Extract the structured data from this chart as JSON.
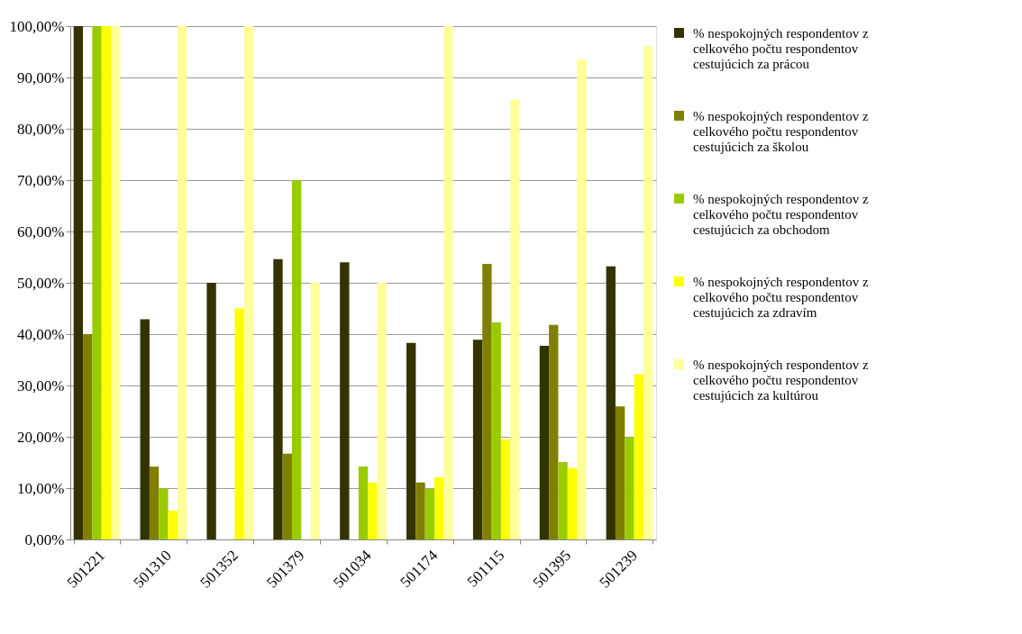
{
  "chart_data": {
    "type": "bar",
    "categories": [
      "501221",
      "501310",
      "501352",
      "501379",
      "501034",
      "501174",
      "501115",
      "501395",
      "501239"
    ],
    "series": [
      {
        "name": "% nespokojných respondentov z celkového počtu respondentov cestujúcich za prácou",
        "color": "#333300",
        "values": [
          100,
          42.9,
          50,
          54.6,
          54.0,
          38.3,
          38.9,
          37.7,
          53.2
        ]
      },
      {
        "name": "% nespokojných respondentov z celkového počtu respondentov cestujúcich za školou",
        "color": "#808000",
        "values": [
          40,
          14.2,
          0,
          16.7,
          0,
          11.1,
          53.7,
          41.8,
          25.9
        ]
      },
      {
        "name": "% nespokojných respondentov z celkového počtu respondentov cestujúcich za obchodom",
        "color": "#99cc00",
        "values": [
          100,
          9.9,
          0,
          70,
          14.2,
          9.9,
          42.3,
          15.1,
          19.9
        ]
      },
      {
        "name": "% nespokojných respondentov z celkového počtu respondentov cestujúcich za zdravím",
        "color": "#ffff00",
        "values": [
          100,
          5.6,
          45.0,
          0,
          11.1,
          12.1,
          19.5,
          13.9,
          32.2
        ]
      },
      {
        "name": "% nespokojných respondentov z celkového počtu respondentov cestujúcich za kultúrou",
        "color": "#ffff99",
        "values": [
          100,
          100,
          100,
          50,
          50,
          100,
          85.7,
          93.5,
          96.0
        ]
      }
    ],
    "ylim": [
      0,
      100
    ],
    "yticks": [
      {
        "value": 0,
        "label": "0,00%"
      },
      {
        "value": 10,
        "label": "10,00%"
      },
      {
        "value": 20,
        "label": "20,00%"
      },
      {
        "value": 30,
        "label": "30,00%"
      },
      {
        "value": 40,
        "label": "40,00%"
      },
      {
        "value": 50,
        "label": "50,00%"
      },
      {
        "value": 60,
        "label": "60,00%"
      },
      {
        "value": 70,
        "label": "70,00%"
      },
      {
        "value": 80,
        "label": "80,00%"
      },
      {
        "value": 90,
        "label": "90,00%"
      },
      {
        "value": 100,
        "label": "100,00%"
      }
    ],
    "grid": "y",
    "legend": "right"
  }
}
